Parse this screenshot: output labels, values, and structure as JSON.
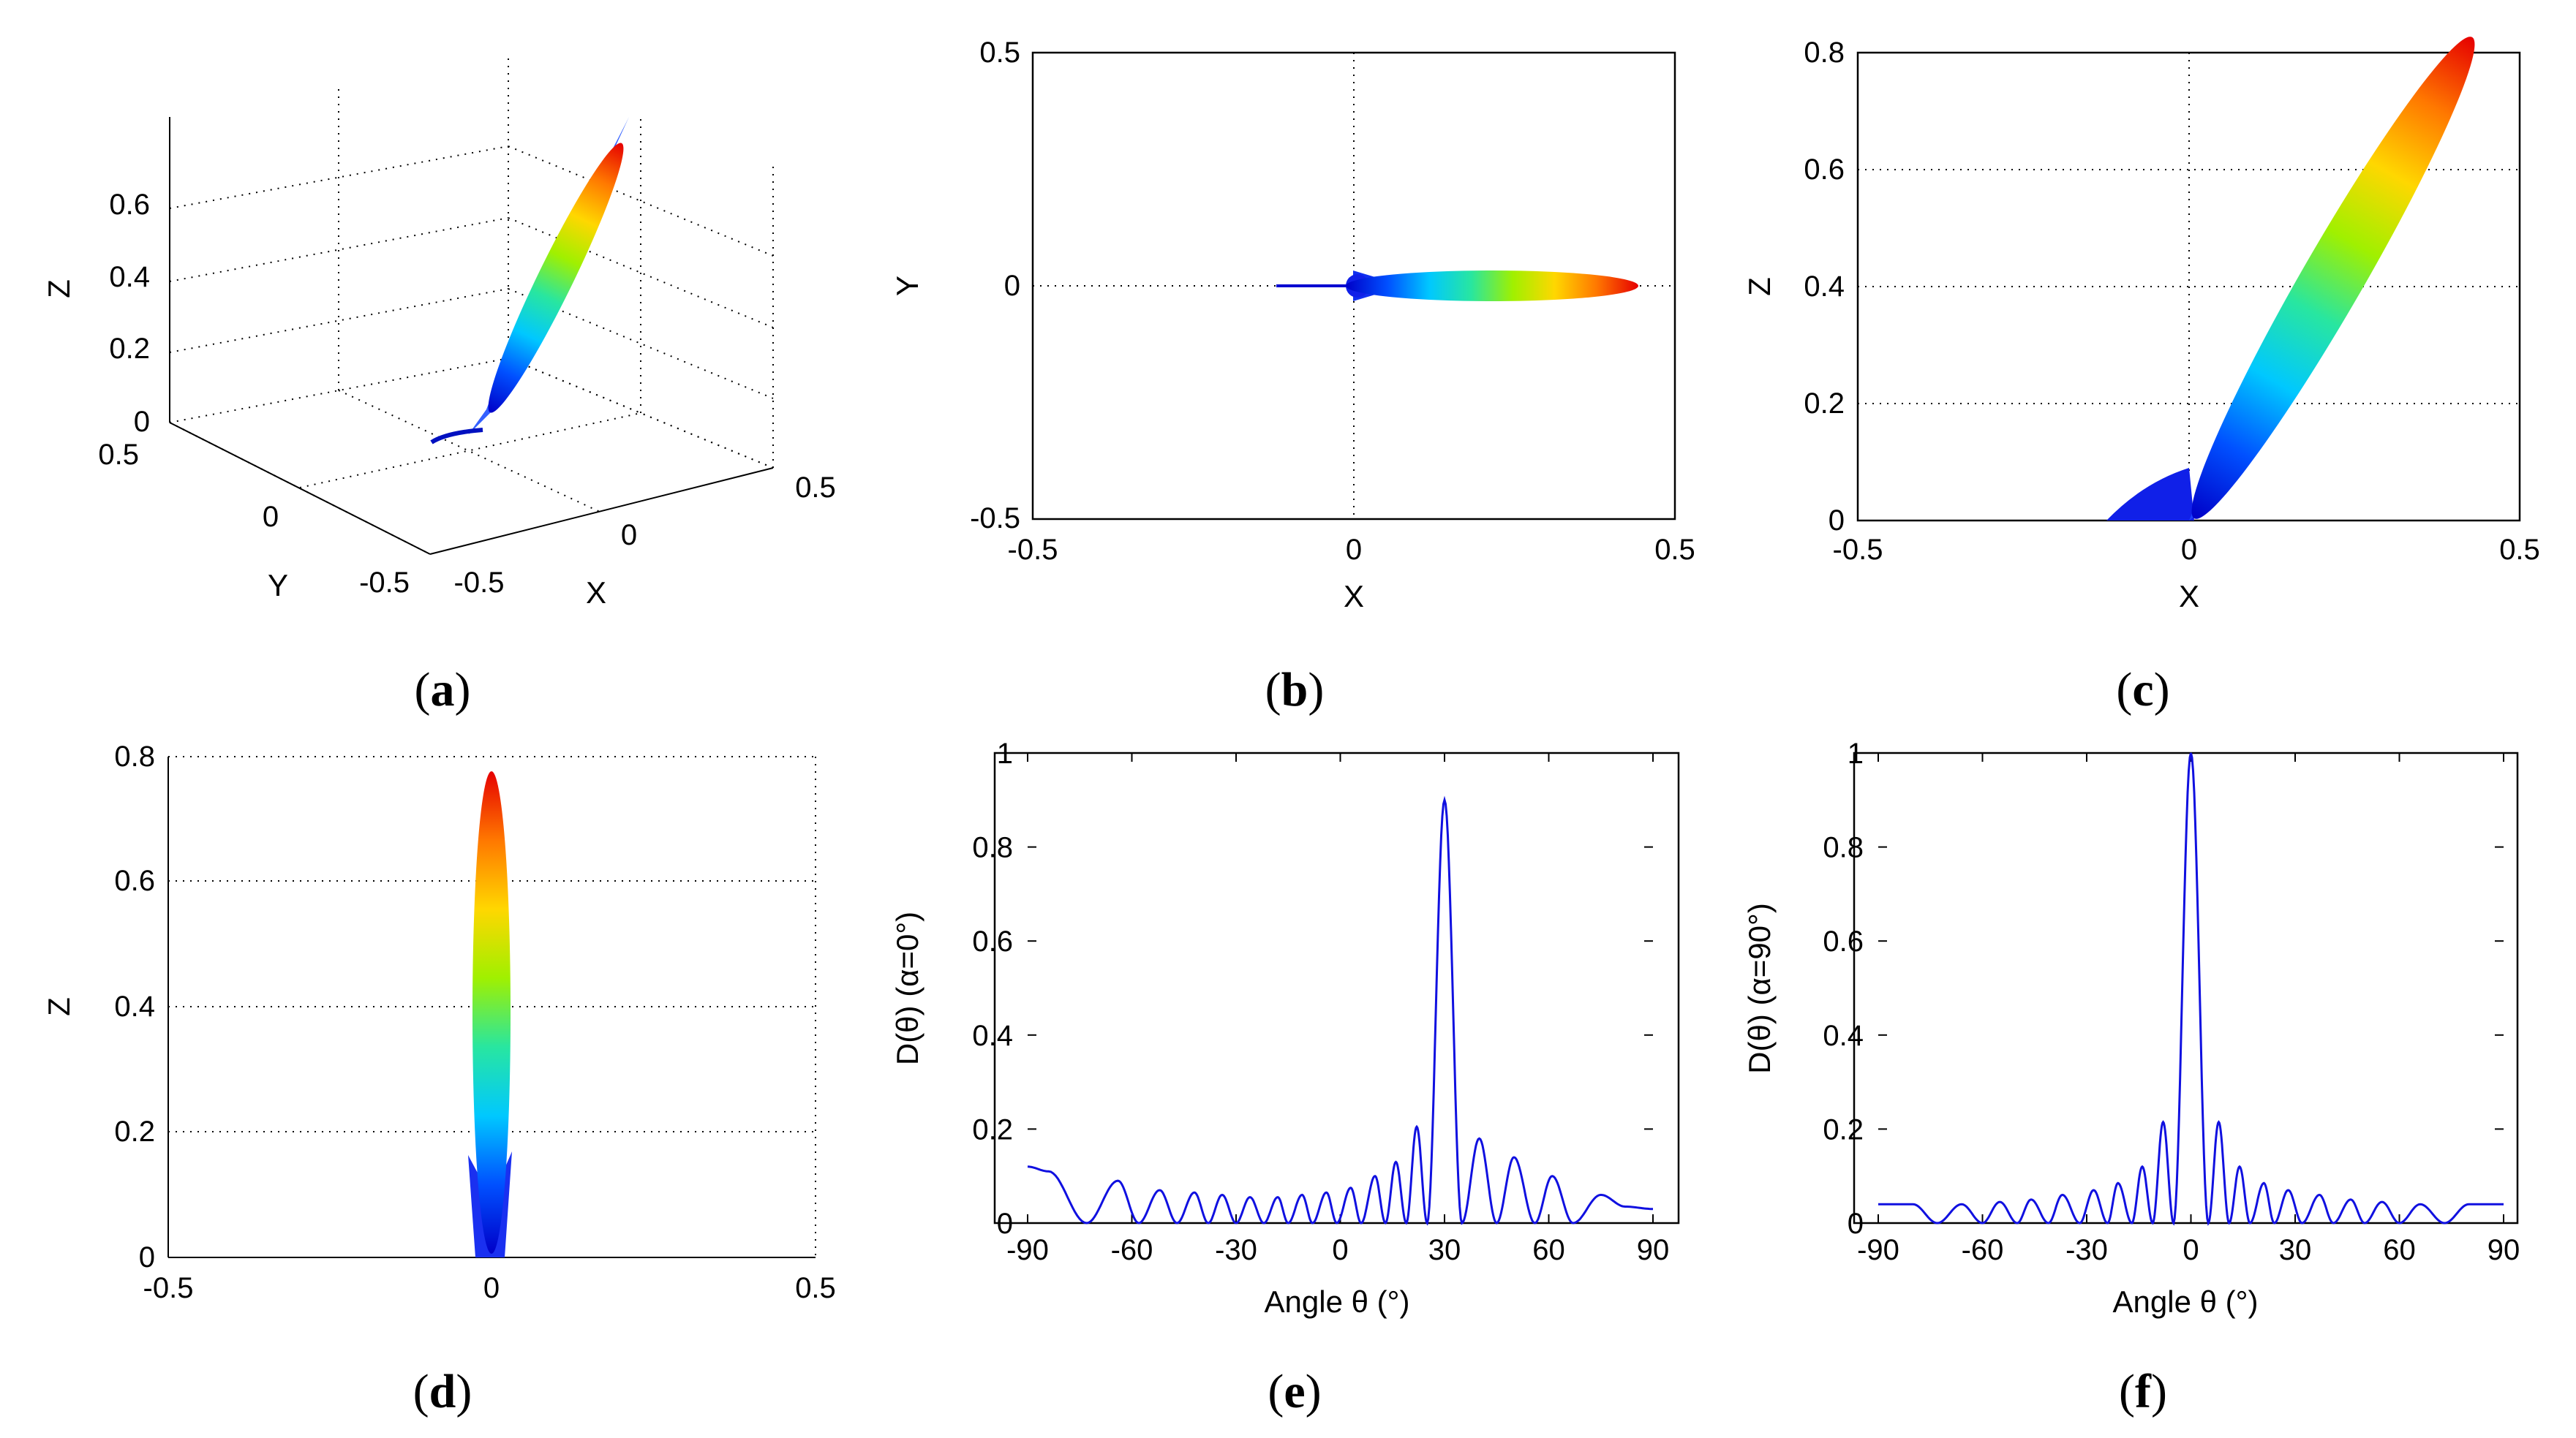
{
  "chart_data": [
    {
      "id": "a",
      "type": "surface3d",
      "caption": "a",
      "xlabel": "X",
      "ylabel": "Y",
      "zlabel": "Z",
      "xticks": [
        "-0.5",
        "0",
        "0.5"
      ],
      "yticks": [
        "-0.5",
        "0",
        "0.5"
      ],
      "zticks": [
        "0",
        "0.2",
        "0.4",
        "0.6"
      ],
      "xlim": [
        -0.5,
        0.5
      ],
      "ylim": [
        -0.5,
        0.5
      ],
      "zlim": [
        0,
        0.8
      ],
      "beam": {
        "peak_x": 0.44,
        "peak_y": 0,
        "peak_z": 0.77
      }
    },
    {
      "id": "b",
      "type": "projection",
      "caption": "b",
      "xlabel": "X",
      "ylabel": "Y",
      "xticks": [
        "-0.5",
        "0",
        "0.5"
      ],
      "yticks": [
        "-0.5",
        "0",
        "0.5"
      ],
      "xlim": [
        -0.5,
        0.5
      ],
      "ylim": [
        -0.5,
        0.5
      ],
      "beam": {
        "from": [
          0,
          0
        ],
        "to": [
          0.44,
          0
        ],
        "back_lobe_to": [
          -0.12,
          0
        ]
      }
    },
    {
      "id": "c",
      "type": "projection",
      "caption": "c",
      "xlabel": "X",
      "ylabel": "Z",
      "xticks": [
        "-0.5",
        "0",
        "0.5"
      ],
      "yticks": [
        "0",
        "0.2",
        "0.4",
        "0.6",
        "0.8"
      ],
      "xlim": [
        -0.5,
        0.5
      ],
      "ylim": [
        0,
        0.8
      ],
      "beam": {
        "from": [
          0,
          0
        ],
        "to": [
          0.44,
          0.77
        ]
      }
    },
    {
      "id": "d",
      "type": "projection",
      "caption": "d",
      "xlabel": "",
      "ylabel": "Z",
      "xticks": [
        "-0.5",
        "0",
        "0.5"
      ],
      "yticks": [
        "0",
        "0.2",
        "0.4",
        "0.6",
        "0.8"
      ],
      "xlim": [
        -0.5,
        0.5
      ],
      "ylim": [
        0,
        0.8
      ],
      "beam": {
        "from": [
          0,
          0
        ],
        "to": [
          0,
          0.77
        ]
      }
    },
    {
      "id": "e",
      "type": "line",
      "caption": "e",
      "xlabel": "Angle θ (°)",
      "ylabel": "D(θ) (α=0°)",
      "xticks": [
        "-90",
        "-60",
        "-30",
        "0",
        "30",
        "60",
        "90"
      ],
      "yticks": [
        "0",
        "0.2",
        "0.4",
        "0.6",
        "0.8",
        "1"
      ],
      "xlim": [
        -90,
        90
      ],
      "ylim": [
        0,
        1
      ],
      "series": [
        {
          "name": "D(θ)",
          "peaks": [
            [
              -90,
              0.12
            ],
            [
              -84,
              0.11
            ],
            [
              -73,
              0.0
            ],
            [
              -64,
              0.09
            ],
            [
              -58,
              0.0
            ],
            [
              -52,
              0.07
            ],
            [
              -47,
              0.0
            ],
            [
              -42,
              0.065
            ],
            [
              -38,
              0.0
            ],
            [
              -34,
              0.06
            ],
            [
              -30,
              0.0
            ],
            [
              -26,
              0.055
            ],
            [
              -22,
              0.0
            ],
            [
              -18,
              0.055
            ],
            [
              -15,
              0.0
            ],
            [
              -11,
              0.06
            ],
            [
              -8,
              0.0
            ],
            [
              -4,
              0.065
            ],
            [
              -1,
              0.0
            ],
            [
              3,
              0.075
            ],
            [
              6,
              0.0
            ],
            [
              10,
              0.1
            ],
            [
              13,
              0.0
            ],
            [
              16,
              0.13
            ],
            [
              19,
              0.0
            ],
            [
              22,
              0.205
            ],
            [
              25,
              0.0
            ],
            [
              30,
              0.9
            ],
            [
              35,
              0.0
            ],
            [
              40,
              0.18
            ],
            [
              45,
              0.0
            ],
            [
              50,
              0.14
            ],
            [
              56,
              0.0
            ],
            [
              61,
              0.1
            ],
            [
              67,
              0.0
            ],
            [
              75,
              0.06
            ],
            [
              82,
              0.035
            ],
            [
              90,
              0.03
            ]
          ]
        }
      ]
    },
    {
      "id": "f",
      "type": "line",
      "caption": "f",
      "xlabel": "Angle θ (°)",
      "ylabel": "D(θ) (α=90°)",
      "xticks": [
        "-90",
        "-60",
        "-30",
        "0",
        "30",
        "60",
        "90"
      ],
      "yticks": [
        "0",
        "0.2",
        "0.4",
        "0.6",
        "0.8",
        "1"
      ],
      "xlim": [
        -90,
        90
      ],
      "ylim": [
        0,
        1
      ],
      "series": [
        {
          "name": "D(θ)",
          "peaks": [
            [
              -90,
              0.04
            ],
            [
              -80,
              0.04
            ],
            [
              -73,
              0.0
            ],
            [
              -66,
              0.04
            ],
            [
              -60,
              0.0
            ],
            [
              -55,
              0.045
            ],
            [
              -50,
              0.0
            ],
            [
              -46,
              0.05
            ],
            [
              -41,
              0.0
            ],
            [
              -37,
              0.06
            ],
            [
              -32,
              0.0
            ],
            [
              -28,
              0.07
            ],
            [
              -24,
              0.0
            ],
            [
              -21,
              0.085
            ],
            [
              -17,
              0.0
            ],
            [
              -14,
              0.12
            ],
            [
              -11,
              0.0
            ],
            [
              -8,
              0.215
            ],
            [
              -5,
              0.0
            ],
            [
              0,
              1.0
            ],
            [
              5,
              0.0
            ],
            [
              8,
              0.215
            ],
            [
              11,
              0.0
            ],
            [
              14,
              0.12
            ],
            [
              17,
              0.0
            ],
            [
              21,
              0.085
            ],
            [
              24,
              0.0
            ],
            [
              28,
              0.07
            ],
            [
              32,
              0.0
            ],
            [
              37,
              0.06
            ],
            [
              41,
              0.0
            ],
            [
              46,
              0.05
            ],
            [
              50,
              0.0
            ],
            [
              55,
              0.045
            ],
            [
              60,
              0.0
            ],
            [
              66,
              0.04
            ],
            [
              73,
              0.0
            ],
            [
              80,
              0.04
            ],
            [
              90,
              0.04
            ]
          ]
        }
      ]
    }
  ],
  "colormap": [
    "#0000c8",
    "#0050ff",
    "#00c8ff",
    "#28e6a0",
    "#a0f000",
    "#ffd700",
    "#ff7800",
    "#e60000"
  ],
  "curve_color": "#1010e0"
}
